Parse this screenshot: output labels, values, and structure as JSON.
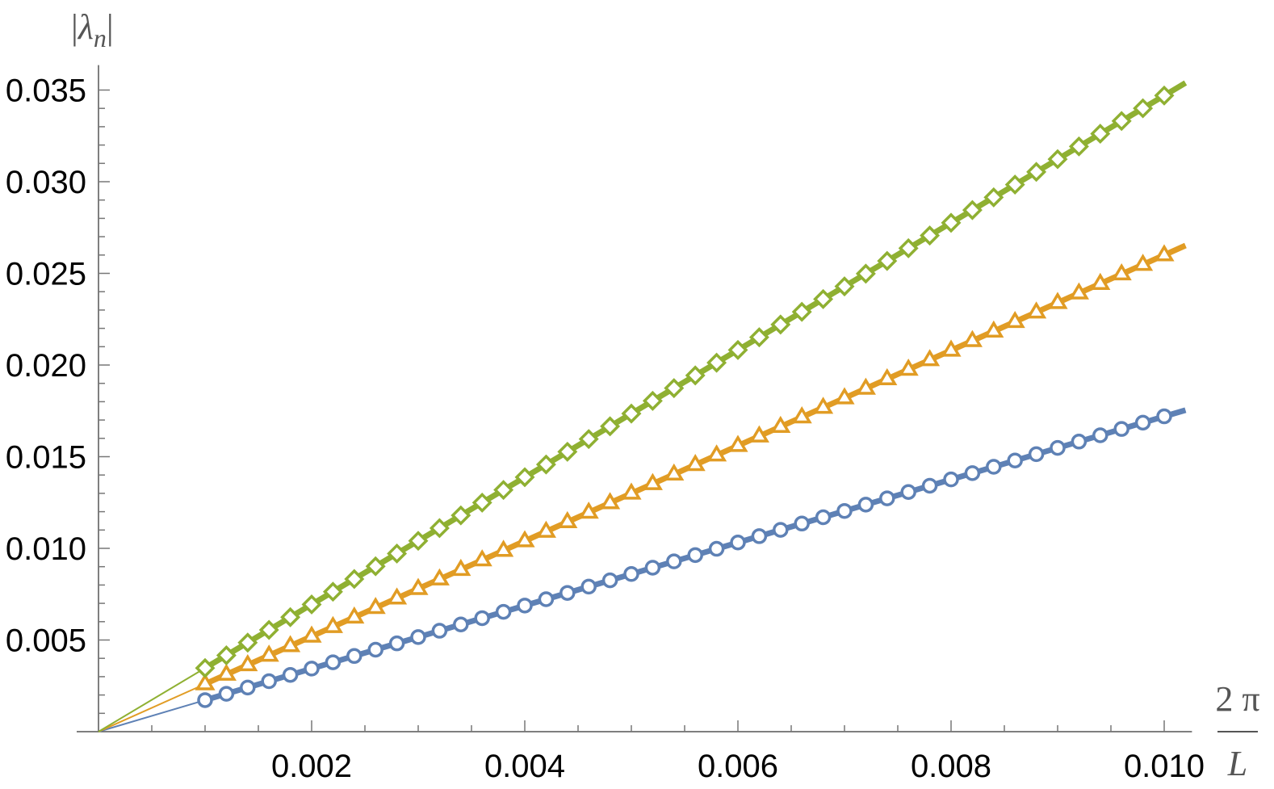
{
  "chart_data": {
    "type": "line",
    "ylabel": "|λn|",
    "ylabel_symbol": "λ",
    "ylabel_subscript": "n",
    "xlabel_numerator": "2 π",
    "xlabel_denominator": "L",
    "xlim": [
      0,
      0.0102
    ],
    "ylim": [
      0,
      0.0357
    ],
    "x_ticks": [
      {
        "value": 0.002,
        "label": "0.002"
      },
      {
        "value": 0.004,
        "label": "0.004"
      },
      {
        "value": 0.006,
        "label": "0.006"
      },
      {
        "value": 0.008,
        "label": "0.008"
      },
      {
        "value": 0.01,
        "label": "0.010"
      }
    ],
    "y_ticks": [
      {
        "value": 0.005,
        "label": "0.005"
      },
      {
        "value": 0.01,
        "label": "0.010"
      },
      {
        "value": 0.015,
        "label": "0.015"
      },
      {
        "value": 0.02,
        "label": "0.020"
      },
      {
        "value": 0.025,
        "label": "0.025"
      },
      {
        "value": 0.03,
        "label": "0.030"
      },
      {
        "value": 0.035,
        "label": "0.035"
      }
    ],
    "grid": false,
    "series": [
      {
        "color": "#5E81B5",
        "marker": "circle",
        "slope": 1.72,
        "line_x": [
          0,
          0.0102
        ],
        "line_y": [
          0,
          0.01754
        ],
        "points_x_start": 0.001,
        "points_x_end": 0.01,
        "points_x_step": 0.0002
      },
      {
        "color": "#E19C24",
        "marker": "triangle",
        "slope": 2.6,
        "line_x": [
          0,
          0.0102
        ],
        "line_y": [
          0,
          0.02652
        ],
        "points_x_start": 0.001,
        "points_x_end": 0.01,
        "points_x_step": 0.0002
      },
      {
        "color": "#8FB032",
        "marker": "diamond",
        "slope": 3.47,
        "line_x": [
          0,
          0.0102
        ],
        "line_y": [
          0,
          0.03539
        ],
        "points_x_start": 0.001,
        "points_x_end": 0.01,
        "points_x_step": 0.0002
      }
    ]
  }
}
